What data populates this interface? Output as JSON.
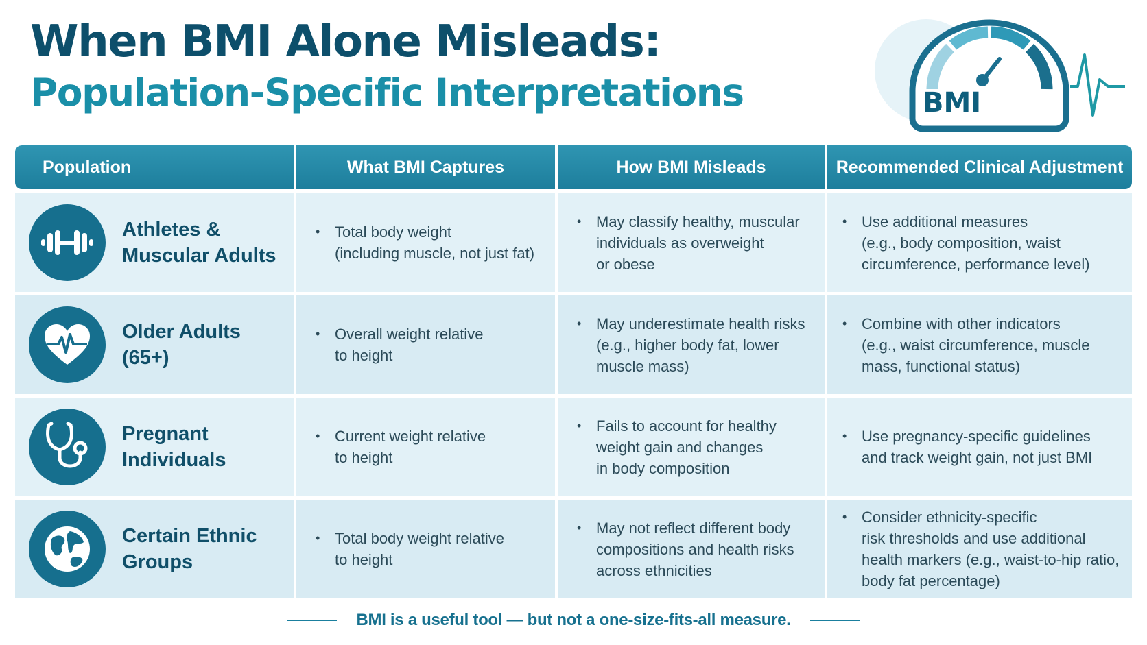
{
  "title": {
    "line1": "When BMI Alone Misleads:",
    "line2": "Population-Specific Interpretations"
  },
  "gauge": {
    "label": "BMI",
    "icon": "bmi-gauge-icon"
  },
  "table": {
    "headers": [
      "Population",
      "What BMI Captures",
      "How BMI Misleads",
      "Recommended Clinical Adjustment"
    ],
    "rows": [
      {
        "icon": "dumbbell-icon",
        "population": "Athletes &\nMuscular Adults",
        "captures": "Total body weight\n(including muscle, not just fat)",
        "misleads": "May classify healthy, muscular\nindividuals as overweight\nor obese",
        "adjustment": "Use additional measures\n(e.g., body composition, waist\ncircumference, performance level)"
      },
      {
        "icon": "heart-pulse-icon",
        "population": "Older Adults\n(65+)",
        "captures": "Overall weight relative\nto height",
        "misleads": "May underestimate health risks\n(e.g., higher body fat, lower\nmuscle mass)",
        "adjustment": "Combine with other indicators\n(e.g., waist circumference, muscle\nmass, functional status)"
      },
      {
        "icon": "stethoscope-icon",
        "population": "Pregnant\nIndividuals",
        "captures": "Current weight relative\nto height",
        "misleads": "Fails to account for healthy\nweight gain and changes\nin body composition",
        "adjustment": "Use pregnancy-specific guidelines\nand track weight gain, not just BMI"
      },
      {
        "icon": "globe-icon",
        "population": "Certain Ethnic\nGroups",
        "captures": "Total body weight relative\nto height",
        "misleads": "May not reflect different body\ncompositions and health risks\nacross ethnicities",
        "adjustment": "Consider ethnicity-specific\nrisk thresholds and use additional\nhealth markers (e.g., waist-to-hip ratio,\nbody fat percentage)"
      }
    ]
  },
  "footer": "BMI is a useful tool — but not a one-size-fits-all measure.",
  "colors": {
    "primary": "#0d4f6b",
    "accent": "#1a8fa8",
    "header": "#1d7e9c",
    "cell": "#e2f1f7"
  }
}
